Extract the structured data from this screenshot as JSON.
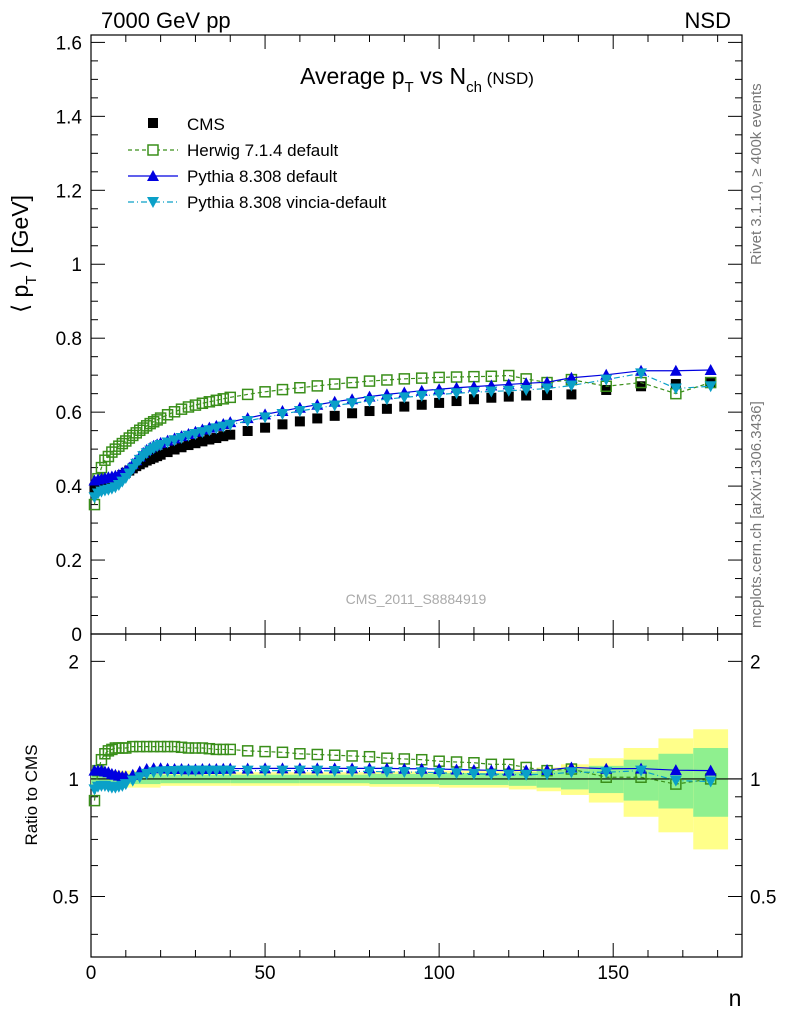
{
  "header": {
    "left": "7000 GeV pp",
    "right": "NSD"
  },
  "side_text": {
    "top": "Rivet 3.1.10, ≥ 400k events",
    "bottom": "mcplots.cern.ch [arXiv:1306.3436]"
  },
  "watermark": "CMS_2011_S8884919",
  "colors": {
    "cms": "#000000",
    "herwig": "#3a8f1a",
    "pythia": "#0000e0",
    "vincia": "#0aa0c8",
    "band_inner": "#8ff08f",
    "band_outer": "#ffff8a"
  },
  "chart_data": [
    {
      "type": "scatter",
      "title_main": "Average p",
      "title_sub1": "T",
      "title_mid": " vs N",
      "title_sub2": "ch",
      "title_tail": " (NSD)",
      "ylabel_pre": "⟨ p",
      "ylabel_sub": "T",
      "ylabel_post": " ⟩ [GeV]",
      "xlabel": "n",
      "xlim": [
        0,
        187
      ],
      "ylim": [
        0,
        1.62
      ],
      "yticks": [
        "0",
        "0.2",
        "0.4",
        "0.6",
        "0.8",
        "1",
        "1.2",
        "1.4",
        "1.6"
      ],
      "legend": {
        "position": "top-left",
        "entries": [
          "CMS",
          "Herwig 7.1.4 default",
          "Pythia 8.308 default",
          "Pythia 8.308 vincia-default"
        ]
      },
      "series": [
        {
          "name": "CMS",
          "style": "filled-square",
          "x": [
            1,
            2,
            3,
            4,
            5,
            6,
            7,
            8,
            9,
            10,
            11,
            12,
            13,
            14,
            15,
            16,
            17,
            18,
            19,
            20,
            22,
            24,
            26,
            28,
            30,
            32,
            34,
            36,
            38,
            40,
            45,
            50,
            55,
            60,
            65,
            70,
            75,
            80,
            85,
            90,
            95,
            100,
            105,
            110,
            115,
            120,
            125,
            131,
            138,
            148,
            158,
            168,
            178
          ],
          "y": [
            0.395,
            0.398,
            0.401,
            0.404,
            0.408,
            0.413,
            0.418,
            0.424,
            0.43,
            0.436,
            0.442,
            0.448,
            0.454,
            0.459,
            0.464,
            0.469,
            0.473,
            0.477,
            0.481,
            0.485,
            0.492,
            0.499,
            0.505,
            0.511,
            0.516,
            0.521,
            0.526,
            0.53,
            0.535,
            0.539,
            0.549,
            0.558,
            0.567,
            0.575,
            0.583,
            0.59,
            0.597,
            0.603,
            0.609,
            0.615,
            0.62,
            0.625,
            0.63,
            0.635,
            0.639,
            0.642,
            0.645,
            0.646,
            0.648,
            0.66,
            0.67,
            0.676,
            0.68
          ]
        },
        {
          "name": "Herwig 7.1.4 default",
          "style": "open-square-dashed",
          "x": [
            1,
            2,
            3,
            4,
            5,
            6,
            7,
            8,
            9,
            10,
            11,
            12,
            13,
            14,
            15,
            16,
            17,
            18,
            19,
            20,
            22,
            24,
            26,
            28,
            30,
            32,
            34,
            36,
            38,
            40,
            45,
            50,
            55,
            60,
            65,
            70,
            75,
            80,
            85,
            90,
            95,
            100,
            105,
            110,
            115,
            120,
            125,
            131,
            138,
            148,
            158,
            168,
            178
          ],
          "y": [
            0.35,
            0.42,
            0.45,
            0.47,
            0.48,
            0.492,
            0.5,
            0.508,
            0.515,
            0.522,
            0.53,
            0.537,
            0.544,
            0.551,
            0.557,
            0.563,
            0.569,
            0.574,
            0.579,
            0.584,
            0.593,
            0.601,
            0.608,
            0.614,
            0.619,
            0.624,
            0.628,
            0.632,
            0.636,
            0.64,
            0.648,
            0.655,
            0.661,
            0.666,
            0.671,
            0.676,
            0.68,
            0.684,
            0.687,
            0.69,
            0.692,
            0.694,
            0.695,
            0.696,
            0.697,
            0.699,
            0.69,
            0.68,
            0.688,
            0.67,
            0.68,
            0.65,
            0.68
          ]
        },
        {
          "name": "Pythia 8.308 default",
          "style": "up-triangle-solid",
          "x": [
            1,
            2,
            3,
            4,
            5,
            6,
            7,
            8,
            9,
            10,
            11,
            12,
            13,
            14,
            15,
            16,
            17,
            18,
            19,
            20,
            22,
            24,
            26,
            28,
            30,
            32,
            34,
            36,
            38,
            40,
            45,
            50,
            55,
            60,
            65,
            70,
            75,
            80,
            85,
            90,
            95,
            100,
            105,
            110,
            115,
            120,
            125,
            131,
            138,
            148,
            158,
            168,
            178
          ],
          "y": [
            0.415,
            0.418,
            0.42,
            0.422,
            0.424,
            0.426,
            0.428,
            0.431,
            0.436,
            0.442,
            0.45,
            0.46,
            0.47,
            0.48,
            0.49,
            0.498,
            0.504,
            0.509,
            0.513,
            0.517,
            0.523,
            0.529,
            0.535,
            0.541,
            0.547,
            0.553,
            0.558,
            0.563,
            0.568,
            0.573,
            0.584,
            0.594,
            0.603,
            0.612,
            0.62,
            0.628,
            0.635,
            0.642,
            0.648,
            0.653,
            0.658,
            0.662,
            0.666,
            0.669,
            0.672,
            0.675,
            0.678,
            0.681,
            0.693,
            0.701,
            0.712,
            0.712,
            0.714
          ]
        },
        {
          "name": "Pythia 8.308 vincia-default",
          "style": "down-triangle-dashdot",
          "x": [
            1,
            2,
            3,
            4,
            5,
            6,
            7,
            8,
            9,
            10,
            11,
            12,
            13,
            14,
            15,
            16,
            17,
            18,
            19,
            20,
            22,
            24,
            26,
            28,
            30,
            32,
            34,
            36,
            38,
            40,
            45,
            50,
            55,
            60,
            65,
            70,
            75,
            80,
            85,
            90,
            95,
            100,
            105,
            110,
            115,
            120,
            125,
            131,
            138,
            148,
            158,
            168,
            178
          ],
          "y": [
            0.37,
            0.38,
            0.385,
            0.388,
            0.39,
            0.393,
            0.397,
            0.403,
            0.412,
            0.422,
            0.434,
            0.447,
            0.46,
            0.471,
            0.481,
            0.489,
            0.496,
            0.502,
            0.507,
            0.511,
            0.518,
            0.524,
            0.53,
            0.536,
            0.541,
            0.546,
            0.551,
            0.556,
            0.561,
            0.566,
            0.576,
            0.586,
            0.595,
            0.603,
            0.611,
            0.618,
            0.624,
            0.63,
            0.635,
            0.64,
            0.644,
            0.648,
            0.651,
            0.654,
            0.656,
            0.658,
            0.66,
            0.664,
            0.672,
            0.688,
            0.705,
            0.664,
            0.67
          ]
        }
      ]
    },
    {
      "type": "scatter",
      "ylabel": "Ratio to CMS",
      "xlabel": "n",
      "xlim": [
        0,
        187
      ],
      "ylim": [
        0.35,
        2.35
      ],
      "yscale": "log",
      "yticks_left": [
        "0.5",
        "1",
        "2"
      ],
      "yticks_right": [
        "0.5",
        "1",
        "2"
      ],
      "xticks": [
        "0",
        "50",
        "100",
        "150"
      ],
      "reference_line": 1.0,
      "uncertainty_band": {
        "x_edges": [
          0,
          20,
          40,
          60,
          80,
          100,
          120,
          128,
          135,
          143,
          153,
          163,
          173,
          183
        ],
        "inner_half_width": [
          0.03,
          0.025,
          0.025,
          0.025,
          0.03,
          0.035,
          0.04,
          0.05,
          0.06,
          0.08,
          0.12,
          0.16,
          0.2
        ],
        "outer_half_width": [
          0.05,
          0.04,
          0.04,
          0.04,
          0.045,
          0.05,
          0.06,
          0.07,
          0.09,
          0.13,
          0.2,
          0.27,
          0.34
        ]
      },
      "series": [
        {
          "name": "Herwig 7.1.4 default",
          "style": "open-square-dashed",
          "x": [
            1,
            2,
            3,
            4,
            5,
            6,
            7,
            8,
            9,
            10,
            12,
            14,
            16,
            18,
            20,
            22,
            24,
            26,
            28,
            30,
            32,
            34,
            36,
            38,
            40,
            45,
            50,
            55,
            60,
            65,
            70,
            75,
            80,
            85,
            90,
            95,
            100,
            105,
            110,
            115,
            120,
            125,
            131,
            138,
            148,
            158,
            168,
            178
          ],
          "y": [
            0.88,
            1.05,
            1.12,
            1.16,
            1.18,
            1.19,
            1.2,
            1.2,
            1.2,
            1.2,
            1.21,
            1.21,
            1.21,
            1.21,
            1.21,
            1.21,
            1.21,
            1.205,
            1.2,
            1.2,
            1.2,
            1.195,
            1.19,
            1.19,
            1.19,
            1.18,
            1.175,
            1.17,
            1.16,
            1.155,
            1.15,
            1.145,
            1.14,
            1.13,
            1.125,
            1.12,
            1.11,
            1.105,
            1.1,
            1.09,
            1.09,
            1.07,
            1.05,
            1.06,
            1.01,
            1.01,
            0.97,
            1.0
          ]
        },
        {
          "name": "Pythia 8.308 default",
          "style": "up-triangle-solid",
          "x": [
            1,
            2,
            3,
            4,
            5,
            6,
            7,
            8,
            9,
            10,
            12,
            14,
            16,
            18,
            20,
            22,
            24,
            26,
            28,
            30,
            32,
            34,
            36,
            38,
            40,
            45,
            50,
            55,
            60,
            65,
            70,
            75,
            80,
            85,
            90,
            95,
            100,
            105,
            110,
            115,
            120,
            125,
            131,
            138,
            148,
            158,
            168,
            178
          ],
          "y": [
            1.05,
            1.05,
            1.05,
            1.045,
            1.04,
            1.03,
            1.025,
            1.02,
            1.015,
            1.015,
            1.025,
            1.045,
            1.06,
            1.065,
            1.065,
            1.063,
            1.06,
            1.06,
            1.058,
            1.058,
            1.06,
            1.06,
            1.06,
            1.062,
            1.063,
            1.063,
            1.064,
            1.064,
            1.064,
            1.064,
            1.064,
            1.064,
            1.064,
            1.064,
            1.062,
            1.062,
            1.06,
            1.057,
            1.054,
            1.052,
            1.05,
            1.052,
            1.054,
            1.07,
            1.062,
            1.063,
            1.053,
            1.05
          ]
        },
        {
          "name": "Pythia 8.308 vincia-default",
          "style": "down-triangle-dashdot",
          "x": [
            1,
            2,
            3,
            4,
            5,
            6,
            7,
            8,
            9,
            10,
            12,
            14,
            16,
            18,
            20,
            22,
            24,
            26,
            28,
            30,
            32,
            34,
            36,
            38,
            40,
            45,
            50,
            55,
            60,
            65,
            70,
            75,
            80,
            85,
            90,
            95,
            100,
            105,
            110,
            115,
            120,
            125,
            131,
            138,
            148,
            158,
            168,
            178
          ],
          "y": [
            0.94,
            0.955,
            0.96,
            0.96,
            0.955,
            0.95,
            0.95,
            0.955,
            0.96,
            0.97,
            0.99,
            1.01,
            1.03,
            1.04,
            1.045,
            1.047,
            1.048,
            1.05,
            1.05,
            1.05,
            1.05,
            1.05,
            1.05,
            1.05,
            1.05,
            1.05,
            1.05,
            1.05,
            1.05,
            1.05,
            1.048,
            1.046,
            1.045,
            1.043,
            1.042,
            1.04,
            1.037,
            1.034,
            1.03,
            1.028,
            1.026,
            1.025,
            1.028,
            1.04,
            1.04,
            1.05,
            0.99,
            0.985
          ]
        }
      ]
    }
  ]
}
